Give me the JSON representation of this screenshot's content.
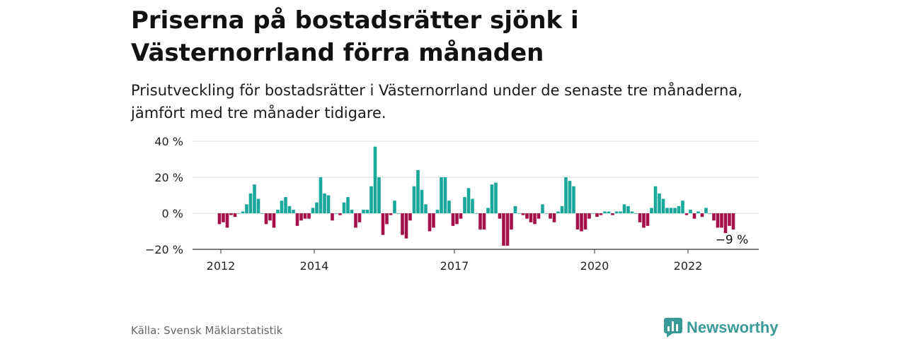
{
  "header": {
    "title": "Priserna på bostadsrätter sjönk i Västernorrland förra månaden",
    "subtitle": "Prisutveckling för bostadsrätter i Västernorrland under de senaste tre månaderna, jämfört med tre månader tidigare."
  },
  "footer": {
    "source": "Källa: Svensk Mäklarstatistik",
    "brand": "Newsworthy",
    "brand_icon": "bar-chart-speech-bubble-icon"
  },
  "chart_data": {
    "type": "bar",
    "ylim": [
      -20,
      40
    ],
    "yticks": [
      -20,
      0,
      20,
      40
    ],
    "ytick_labels": [
      "−20 %",
      "0 %",
      "20 %",
      "40 %"
    ],
    "xtick_labels": [
      {
        "label": "2012",
        "date": "2012-01"
      },
      {
        "label": "2014",
        "date": "2014-01"
      },
      {
        "label": "2017",
        "date": "2017-01"
      },
      {
        "label": "2020",
        "date": "2020-01"
      },
      {
        "label": "2022",
        "date": "2022-01"
      }
    ],
    "colors": {
      "positive": "#1aa79c",
      "negative": "#a3104a",
      "grid": "#d9d9d9",
      "axis": "#333333"
    },
    "start": "2012-01",
    "values": [
      -6,
      -5,
      -8,
      -1,
      -2,
      0,
      1,
      5,
      11,
      16,
      8,
      0,
      -6,
      -4,
      -8,
      2,
      7,
      9,
      4,
      2,
      -7,
      -4,
      -3,
      -3,
      3,
      6,
      20,
      11,
      10,
      -4,
      0,
      -1,
      6,
      9,
      2,
      -8,
      -5,
      2,
      2,
      15,
      37,
      20,
      -12,
      -6,
      -1,
      7,
      0,
      -12,
      -14,
      -4,
      15,
      24,
      13,
      5,
      -10,
      -8,
      2,
      20,
      20,
      7,
      -7,
      -6,
      -3,
      9,
      14,
      8,
      0,
      -9,
      -9,
      3,
      16,
      17,
      -3,
      -18,
      -18,
      -9,
      4,
      0,
      -1,
      -3,
      -5,
      -6,
      -3,
      5,
      0,
      -3,
      -5,
      1,
      4,
      20,
      18,
      15,
      -9,
      -10,
      -9,
      -3,
      0,
      -2,
      -1,
      1,
      1,
      -1,
      1,
      1,
      5,
      4,
      1,
      0,
      -5,
      -8,
      -7,
      3,
      15,
      11,
      8,
      3,
      3,
      3,
      4,
      7,
      -1,
      2,
      -3,
      1,
      -2,
      3,
      0,
      -4,
      -8,
      -8,
      -11,
      -7,
      -9
    ],
    "annotation": {
      "text": "−9 %",
      "index": 132
    }
  }
}
